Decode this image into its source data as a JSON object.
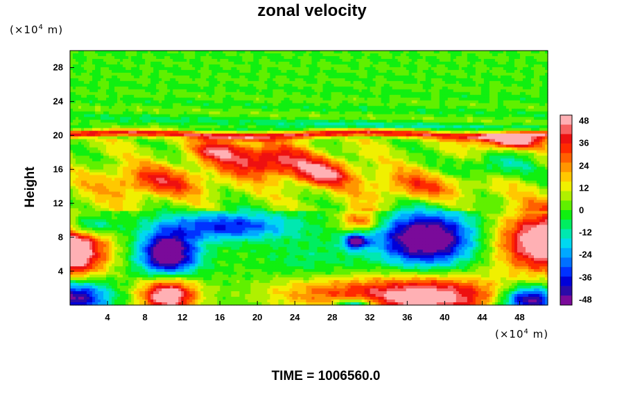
{
  "chart_data": {
    "type": "heatmap",
    "title": "zonal velocity",
    "ylabel": "Height",
    "y_unit": {
      "prefix": "(×10",
      "exp": "4",
      "suffix": " m)"
    },
    "x_unit": {
      "prefix": "(×10",
      "exp": "4",
      "suffix": " m)"
    },
    "xlim": [
      0,
      51
    ],
    "ylim": [
      0,
      30
    ],
    "x_ticks": [
      4,
      8,
      12,
      16,
      20,
      24,
      28,
      32,
      36,
      40,
      44,
      48
    ],
    "y_ticks": [
      4,
      8,
      12,
      16,
      20,
      24,
      28
    ],
    "colorbar": {
      "ticks": [
        48,
        36,
        24,
        12,
        0,
        -12,
        -24,
        -36,
        -48
      ],
      "range": [
        -51,
        51
      ]
    },
    "features": [
      {
        "x": 0.0,
        "y": 6.3,
        "rx": 3.8,
        "ry": 3.2,
        "v": 65
      },
      {
        "x": 51.0,
        "y": 7.5,
        "rx": 5.2,
        "ry": 3.6,
        "v": 62
      },
      {
        "x": 10.5,
        "y": 1.2,
        "rx": 3.0,
        "ry": 2.2,
        "v": 58
      },
      {
        "x": 38.0,
        "y": 1.0,
        "rx": 8.0,
        "ry": 2.4,
        "v": 55
      },
      {
        "x": 26.5,
        "y": 1.5,
        "rx": 6.5,
        "ry": 2.0,
        "v": 22
      },
      {
        "x": 47.0,
        "y": 19.3,
        "rx": 3.2,
        "ry": 0.9,
        "v": 48
      },
      {
        "x": 21.0,
        "y": 17.0,
        "rx": 4.8,
        "ry": 1.9,
        "v": 38
      },
      {
        "x": 27.0,
        "y": 15.5,
        "rx": 3.5,
        "ry": 1.6,
        "v": 34
      },
      {
        "x": 9.0,
        "y": 14.5,
        "rx": 6.0,
        "ry": 1.9,
        "v": 27
      },
      {
        "x": 37.0,
        "y": 14.0,
        "rx": 6.0,
        "ry": 1.8,
        "v": 22
      },
      {
        "x": 31.0,
        "y": 10.0,
        "rx": 2.2,
        "ry": 1.3,
        "v": 32
      },
      {
        "x": 16.0,
        "y": 18.3,
        "rx": 3.0,
        "ry": 1.3,
        "v": 28
      },
      {
        "x": 10.5,
        "y": 6.0,
        "rx": 3.0,
        "ry": 2.7,
        "v": -62
      },
      {
        "x": 38.0,
        "y": 7.8,
        "rx": 5.0,
        "ry": 3.1,
        "v": -62
      },
      {
        "x": 30.5,
        "y": 7.5,
        "rx": 1.3,
        "ry": 0.9,
        "v": -48
      },
      {
        "x": 17.0,
        "y": 9.3,
        "rx": 6.5,
        "ry": 1.6,
        "v": -36
      },
      {
        "x": 2.0,
        "y": 9.3,
        "rx": 2.5,
        "ry": 1.1,
        "v": -28
      },
      {
        "x": 0.5,
        "y": 1.0,
        "rx": 3.5,
        "ry": 2.0,
        "v": -50
      },
      {
        "x": 49.0,
        "y": 0.6,
        "rx": 3.0,
        "ry": 1.6,
        "v": -55
      },
      {
        "x": 30.5,
        "y": 0.0,
        "rx": 2.2,
        "ry": 0.8,
        "v": -42
      },
      {
        "x": 45.0,
        "y": 16.3,
        "rx": 4.0,
        "ry": 1.4,
        "v": -18
      },
      {
        "x": 26.0,
        "y": 5.0,
        "rx": 5.0,
        "ry": 3.0,
        "v": -8
      }
    ],
    "jet": {
      "y": 20.1,
      "half_width": 0.45,
      "v": 40
    }
  },
  "footer": {
    "label": "TIME = ",
    "value": "1006560.0"
  },
  "colors": {
    "axis": "#000000",
    "background": "#ffffff"
  }
}
